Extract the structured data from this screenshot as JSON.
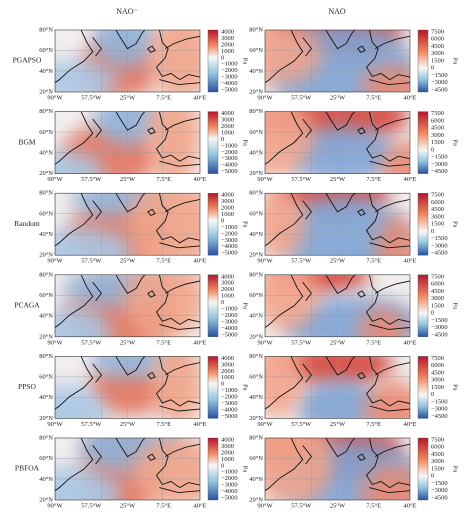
{
  "columns": [
    "NAO⁻",
    "NAO"
  ],
  "rows": [
    "PGAPSO",
    "BGM",
    "Random",
    "PCAGA",
    "PPSO",
    "PBFOA"
  ],
  "latitude_labels": [
    "80°N",
    "60°N",
    "40°N",
    "20°N"
  ],
  "longitude_labels": [
    "90°W",
    "57.5°W",
    "25°W",
    "7.5°E",
    "40°E"
  ],
  "colorbars": [
    {
      "ticks": [
        "4000",
        "3000",
        "2000",
        "1000",
        "0",
        "−1000",
        "−2000",
        "−3000",
        "−4000",
        "−5000"
      ],
      "unit": "Pa"
    },
    {
      "ticks": [
        "7500",
        "6000",
        "4500",
        "3000",
        "1500",
        "0",
        "−1500",
        "−3000",
        "−4500"
      ],
      "unit": "Pa"
    }
  ]
}
